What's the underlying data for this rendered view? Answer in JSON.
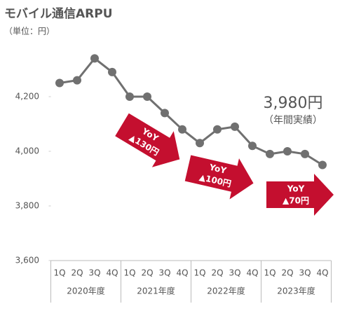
{
  "chart_data": {
    "type": "line",
    "title": "モバイル通信ARPU",
    "subtitle": "（単位：円）",
    "categories": [
      "1Q",
      "2Q",
      "3Q",
      "4Q",
      "1Q",
      "2Q",
      "3Q",
      "4Q",
      "1Q",
      "2Q",
      "3Q",
      "4Q",
      "1Q",
      "2Q",
      "3Q",
      "4Q"
    ],
    "groups": [
      "2020年度",
      "2021年度",
      "2022年度",
      "2023年度"
    ],
    "series": [
      {
        "name": "モバイル通信ARPU",
        "color": "#707070",
        "values": [
          4250,
          4260,
          4340,
          4290,
          4200,
          4200,
          4140,
          4080,
          4030,
          4080,
          4090,
          4020,
          3990,
          4000,
          3990,
          3950
        ]
      }
    ],
    "ylim": [
      3600,
      4400
    ],
    "yticks": [
      {
        "value": 3600,
        "label": "3,600"
      },
      {
        "value": 3800,
        "label": "3,800"
      },
      {
        "value": 4000,
        "label": "4,000"
      },
      {
        "value": 4200,
        "label": "4,200"
      }
    ],
    "annotations": {
      "annual": "3,980円",
      "annual_note": "（年間実績）",
      "yoy": [
        {
          "label": "YoY",
          "change": "▲130円"
        },
        {
          "label": "YoY",
          "change": "▲100円"
        },
        {
          "label": "YoY",
          "change": "▲70円"
        }
      ]
    },
    "arrow_color": "#c40f2f"
  }
}
